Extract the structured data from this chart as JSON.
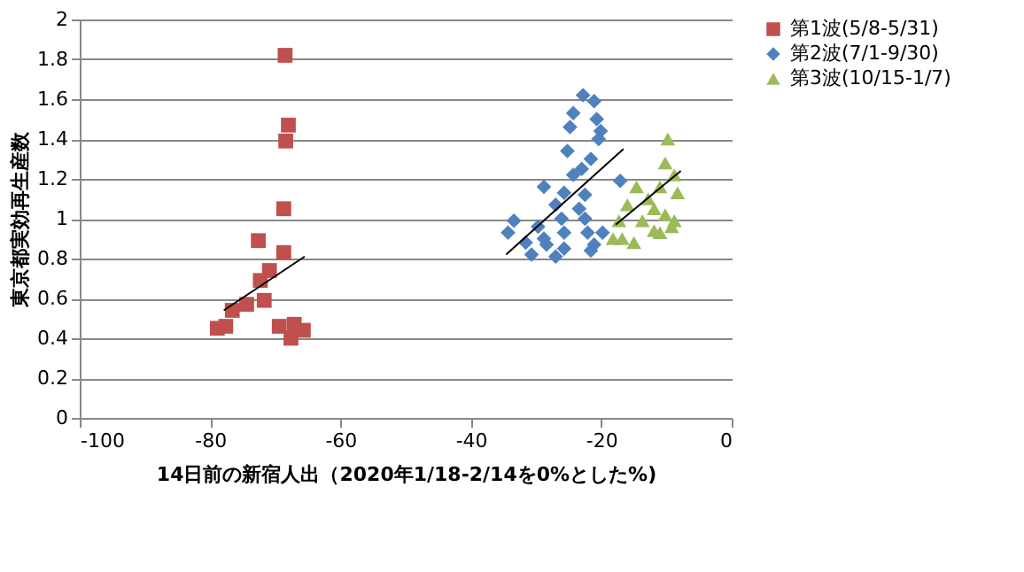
{
  "chart_data": {
    "type": "scatter",
    "xlabel": "14日前の新宿人出（2020年1/18-2/14を0%とした%)",
    "ylabel": "東京都実効再生産数",
    "xlim": [
      -100,
      0
    ],
    "xticks": [
      -100,
      -80,
      -60,
      -40,
      -20,
      0
    ],
    "ylim": [
      0,
      2
    ],
    "yticks": [
      0,
      0.2,
      0.4,
      0.6,
      0.8,
      1,
      1.2,
      1.4,
      1.6,
      1.8,
      2
    ],
    "grid": "y",
    "legend": "right",
    "series": [
      {
        "name": "第1波(5/8-5/31)",
        "color": "#c0504d",
        "marker": "square",
        "x": [
          -68.5,
          -68.0,
          -68.4,
          -68.7,
          -72.6,
          -68.7,
          -70.9,
          -72.3,
          -71.7,
          -74.4,
          -76.6,
          -77.6,
          -78.9,
          -69.4,
          -67.1,
          -65.7,
          -67.6
        ],
        "values": [
          1.82,
          1.47,
          1.39,
          1.05,
          0.89,
          0.83,
          0.74,
          0.69,
          0.59,
          0.57,
          0.54,
          0.46,
          0.45,
          0.46,
          0.47,
          0.44,
          0.4
        ]
      },
      {
        "name": "第2波(7/1-9/30)",
        "color": "#4f81bd",
        "marker": "diamond",
        "x": [
          -22.8,
          -21.1,
          -24.3,
          -20.7,
          -24.8,
          -20.1,
          -20.4,
          -25.2,
          -21.6,
          -23.0,
          -24.3,
          -17.1,
          -28.8,
          -25.7,
          -22.5,
          -27.0,
          -23.4,
          -33.4,
          -22.5,
          -26.1,
          -34.3,
          -29.7,
          -22.1,
          -31.6,
          -28.8,
          -25.7,
          -19.8,
          -21.1,
          -30.7,
          -27.0,
          -25.7,
          -21.6,
          -28.4
        ],
        "values": [
          1.62,
          1.59,
          1.53,
          1.5,
          1.46,
          1.44,
          1.4,
          1.34,
          1.3,
          1.25,
          1.22,
          1.19,
          1.16,
          1.13,
          1.12,
          1.07,
          1.05,
          0.99,
          1.0,
          1.0,
          0.93,
          0.96,
          0.93,
          0.88,
          0.9,
          0.93,
          0.93,
          0.87,
          0.82,
          0.81,
          0.85,
          0.84,
          0.87
        ]
      },
      {
        "name": "第3波(10/15-1/7)",
        "color": "#9bbb59",
        "marker": "triangle",
        "x": [
          -9.8,
          -10.2,
          -8.8,
          -11.0,
          -8.3,
          -14.6,
          -12.8,
          -16.0,
          -11.9,
          -10.2,
          -8.8,
          -17.3,
          -13.7,
          -11.9,
          -9.2,
          -16.8,
          -15.0,
          -18.2,
          -11.0
        ],
        "values": [
          1.4,
          1.28,
          1.22,
          1.16,
          1.13,
          1.16,
          1.1,
          1.07,
          1.05,
          1.02,
          0.99,
          0.99,
          0.99,
          0.94,
          0.96,
          0.9,
          0.88,
          0.9,
          0.93
        ]
      },
      {
        "type": "line",
        "color": "#000000",
        "x": [
          -77.9,
          -65.5
        ],
        "values": [
          0.54,
          0.81
        ]
      },
      {
        "type": "line",
        "color": "#000000",
        "x": [
          -34.6,
          -16.6
        ],
        "values": [
          0.82,
          1.35
        ]
      },
      {
        "type": "line",
        "color": "#000000",
        "x": [
          -17.8,
          -7.8
        ],
        "values": [
          0.97,
          1.24
        ]
      }
    ]
  }
}
